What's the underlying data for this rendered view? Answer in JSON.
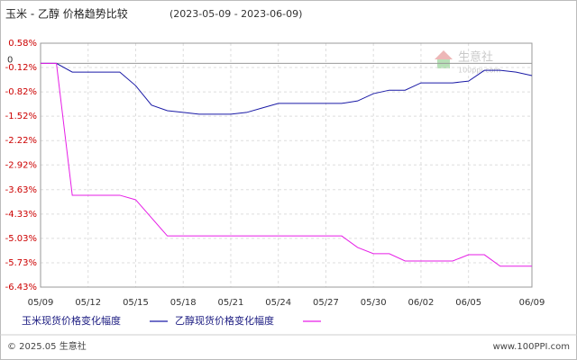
{
  "chart_data": {
    "type": "line",
    "title": "玉米 - 乙醇 价格趋势比较",
    "subtitle": "(2023-05-09 - 2023-06-09)",
    "categories": [
      "05/09",
      null,
      null,
      "05/12",
      null,
      null,
      "05/15",
      null,
      null,
      "05/18",
      null,
      null,
      "05/21",
      null,
      null,
      "05/24",
      null,
      null,
      "05/27",
      null,
      null,
      "05/30",
      null,
      null,
      "06/02",
      null,
      null,
      "06/05",
      null,
      null,
      null,
      "06/09"
    ],
    "series": [
      {
        "name": "玉米现货价格变化幅度",
        "color": "#1a1aa6",
        "values": [
          0,
          0,
          -0.25,
          -0.25,
          -0.25,
          -0.25,
          -0.64,
          -1.2,
          -1.36,
          -1.41,
          -1.46,
          -1.46,
          -1.46,
          -1.41,
          -1.28,
          -1.15,
          -1.15,
          -1.15,
          -1.15,
          -1.15,
          -1.08,
          -0.87,
          -0.77,
          -0.77,
          -0.56,
          -0.56,
          -0.56,
          -0.51,
          -0.2,
          -0.2,
          -0.25,
          -0.35
        ]
      },
      {
        "name": "乙醇现货价格变化幅度",
        "color": "#e61ee6",
        "values": [
          0,
          0,
          -3.79,
          -3.79,
          -3.79,
          -3.79,
          -3.92,
          -4.44,
          -4.96,
          -4.96,
          -4.96,
          -4.96,
          -4.96,
          -4.96,
          -4.96,
          -4.96,
          -4.96,
          -4.96,
          -4.96,
          -4.96,
          -5.29,
          -5.47,
          -5.47,
          -5.68,
          -5.68,
          -5.68,
          -5.68,
          -5.5,
          -5.5,
          -5.83,
          -5.83,
          -5.83
        ]
      }
    ],
    "ylim": [
      -6.43,
      0.58
    ],
    "yticks": [
      {
        "value": 0.58,
        "label": "0.58%"
      },
      {
        "value": -0.12,
        "label": "-0.12%"
      },
      {
        "value": -0.82,
        "label": "-0.82%"
      },
      {
        "value": -1.52,
        "label": "-1.52%"
      },
      {
        "value": -2.22,
        "label": "-2.22%"
      },
      {
        "value": -2.92,
        "label": "-2.92%"
      },
      {
        "value": -3.63,
        "label": "-3.63%"
      },
      {
        "value": -4.33,
        "label": "-4.33%"
      },
      {
        "value": -5.03,
        "label": "-5.03%"
      },
      {
        "value": -5.73,
        "label": "-5.73%"
      },
      {
        "value": -6.43,
        "label": "-6.43%"
      }
    ],
    "zero_line": {
      "value": 0,
      "label": "0"
    },
    "grid": true,
    "watermark": {
      "name": "生意社",
      "site": "100ppi.com"
    },
    "footer": {
      "left": "© 2025.05 生意社",
      "right": "www.100PPI.com"
    }
  }
}
